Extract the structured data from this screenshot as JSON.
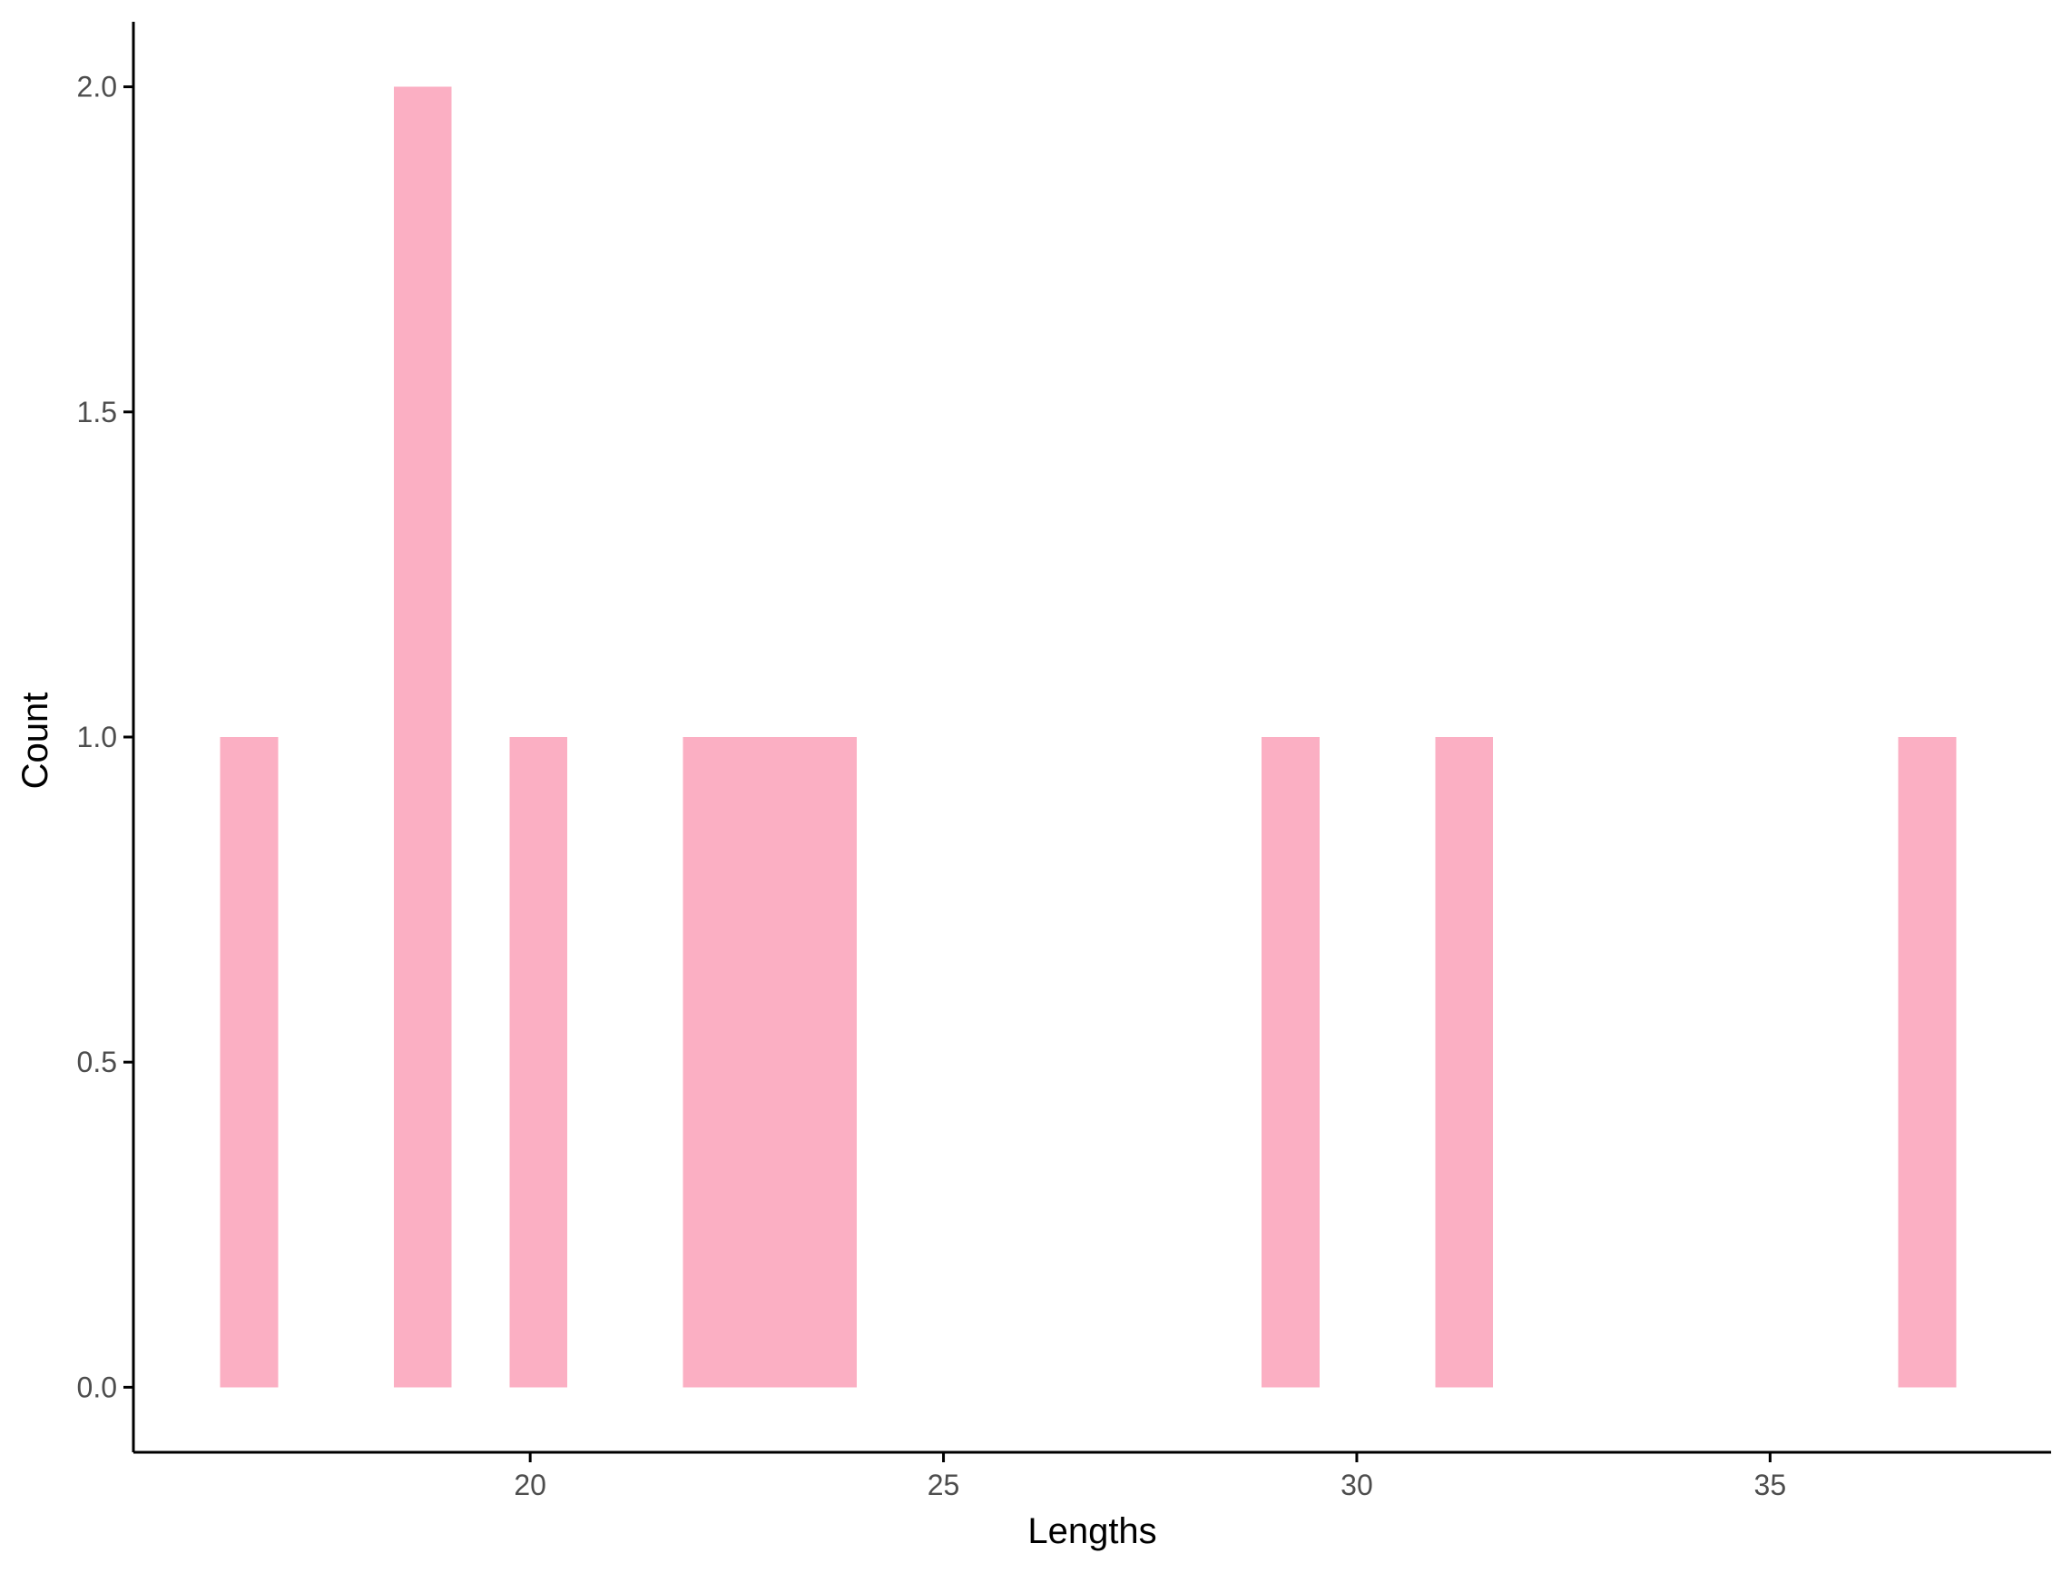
{
  "chart_data": {
    "type": "bar",
    "chart_kind": "histogram",
    "title": "",
    "xlabel": "Lengths",
    "ylabel": "Count",
    "xlim": [
      15.2,
      38.4
    ],
    "ylim": [
      -0.1,
      2.1
    ],
    "x_ticks": [
      {
        "value": 20,
        "label": "20"
      },
      {
        "value": 25,
        "label": "25"
      },
      {
        "value": 30,
        "label": "30"
      },
      {
        "value": 35,
        "label": "35"
      }
    ],
    "y_ticks": [
      {
        "value": 0.0,
        "label": "0.0"
      },
      {
        "value": 0.5,
        "label": "0.5"
      },
      {
        "value": 1.0,
        "label": "1.0"
      },
      {
        "value": 1.5,
        "label": "1.5"
      },
      {
        "value": 2.0,
        "label": "2.0"
      }
    ],
    "bin_width": 0.7,
    "bins": [
      {
        "x0": 16.25,
        "x1": 16.95,
        "count": 1
      },
      {
        "x0": 18.35,
        "x1": 19.05,
        "count": 2
      },
      {
        "x0": 19.75,
        "x1": 20.45,
        "count": 1
      },
      {
        "x0": 21.85,
        "x1": 22.55,
        "count": 1
      },
      {
        "x0": 22.55,
        "x1": 23.25,
        "count": 1
      },
      {
        "x0": 23.25,
        "x1": 23.95,
        "count": 1
      },
      {
        "x0": 28.85,
        "x1": 29.55,
        "count": 1
      },
      {
        "x0": 30.95,
        "x1": 31.65,
        "count": 1
      },
      {
        "x0": 36.55,
        "x1": 37.25,
        "count": 1
      }
    ],
    "bar_color": "#fbafc3",
    "grid": false,
    "legend": "none"
  }
}
